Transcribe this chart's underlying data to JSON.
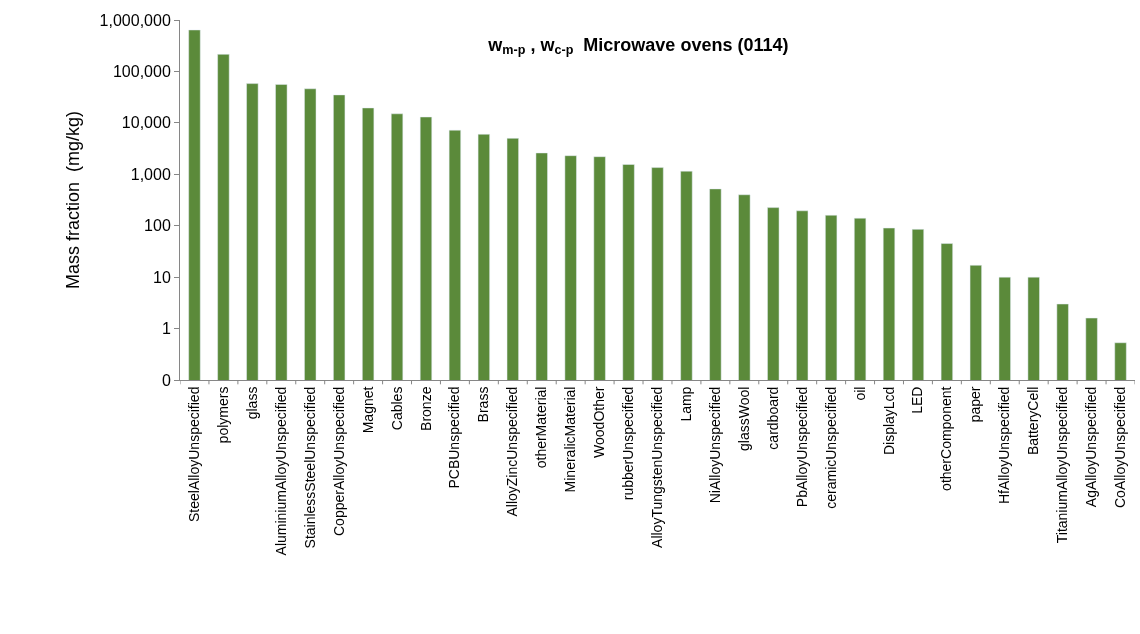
{
  "chart_data": {
    "type": "bar",
    "title": "w$_{m-p}$ , w$_{c-p}$  Microwave ovens (0114)",
    "ylabel": "Mass fraction  (mg/kg)",
    "categories": [
      "SteelAlloyUnspecified",
      "polymers",
      "glass",
      "AluminiumAlloyUnspecified",
      "StainlessSteelUnspecified",
      "CopperAlloyUnspecified",
      "Magnet",
      "Cables",
      "Bronze",
      "PCBUnspecified",
      "Brass",
      "AlloyZincUnspecified",
      "otherMaterial",
      "MineralicMaterial",
      "WoodOther",
      "rubberUnspecified",
      "AlloyTungstenUnspecified",
      "Lamp",
      "NiAlloyUnspecified",
      "glassWool",
      "cardboard",
      "PbAlloyUnspecified",
      "ceramicUnspecified",
      "oil",
      "DisplayLcd",
      "LED",
      "otherComponent",
      "paper",
      "HfAlloyUnspecified",
      "BatteryCell",
      "TitaniumAlloyUnspecified",
      "AgAlloyUnspecified",
      "CoAlloyUnspecified"
    ],
    "values": [
      640000,
      215000,
      58000,
      56000,
      46000,
      35000,
      19500,
      15000,
      13000,
      7200,
      6000,
      5000,
      2600,
      2300,
      2200,
      1550,
      1350,
      1150,
      520,
      400,
      225,
      195,
      160,
      140,
      90,
      85,
      45,
      17,
      10,
      10,
      3,
      1.6,
      0.53
    ],
    "color": "#5b8a3a",
    "log": true,
    "ylim": [
      0.1,
      1000000
    ],
    "grid": false,
    "yticks": [
      {
        "value": 0.1,
        "label": "0"
      },
      1,
      10,
      {
        "value": 100,
        "label": "100"
      },
      {
        "value": 1000,
        "label": "1,000"
      },
      {
        "value": 10000,
        "label": "10,000"
      },
      {
        "value": 100000,
        "label": "100,000"
      },
      {
        "value": 1000000,
        "label": "1,000,000"
      }
    ],
    "relative": false
  }
}
